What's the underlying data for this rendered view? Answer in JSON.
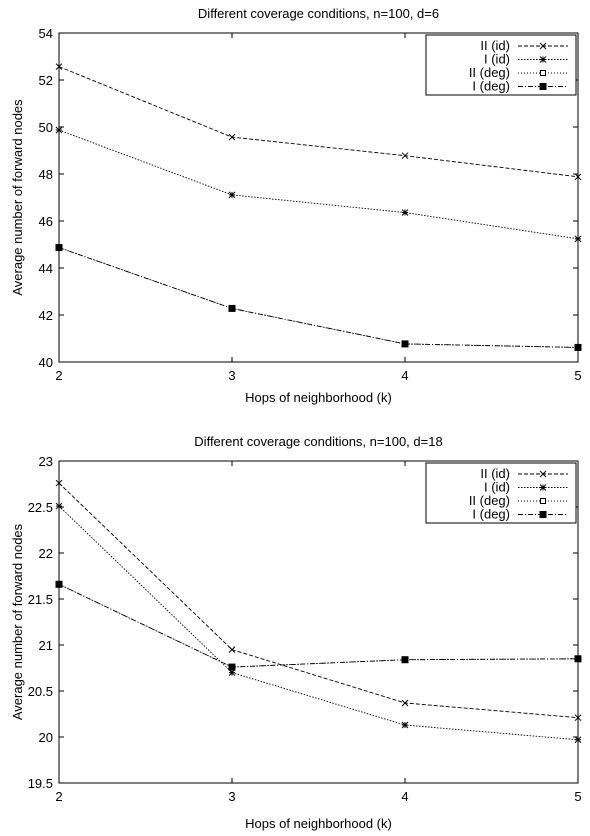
{
  "chart_data": [
    {
      "type": "line",
      "title": "Different coverage conditions, n=100, d=6",
      "xlabel": "Hops of neighborhood (k)",
      "ylabel": "Average number of forward nodes",
      "x": [
        2,
        3,
        4,
        5
      ],
      "xlim": [
        2,
        5
      ],
      "ylim": [
        40,
        54
      ],
      "xticks": [
        "2",
        "3",
        "4",
        "5"
      ],
      "yticks": [
        "40",
        "42",
        "44",
        "46",
        "48",
        "50",
        "52",
        "54"
      ],
      "grid": false,
      "legend_position": "top-right",
      "series": [
        {
          "name": "II (id)",
          "values": [
            52.57,
            49.57,
            48.78,
            47.88
          ],
          "marker": "x",
          "dash": "dashed"
        },
        {
          "name": "I (id)",
          "values": [
            49.87,
            47.11,
            46.36,
            45.24
          ],
          "marker": "star",
          "dash": "dotted"
        },
        {
          "name": "II (deg)",
          "values": [
            44.87,
            42.28,
            40.77,
            40.62
          ],
          "marker": "square-open",
          "dash": "fine-dotted"
        },
        {
          "name": "I (deg)",
          "values": [
            44.87,
            42.28,
            40.77,
            40.62
          ],
          "marker": "square-filled",
          "dash": "dash-dot"
        }
      ]
    },
    {
      "type": "line",
      "title": "Different coverage conditions, n=100, d=18",
      "xlabel": "Hops of neighborhood (k)",
      "ylabel": "Average number of forward nodes",
      "x": [
        2,
        3,
        4,
        5
      ],
      "xlim": [
        2,
        5
      ],
      "ylim": [
        19.5,
        23
      ],
      "xticks": [
        "2",
        "3",
        "4",
        "5"
      ],
      "yticks": [
        "19.5",
        "20",
        "20.5",
        "21",
        "21.5",
        "22",
        "22.5",
        "23"
      ],
      "grid": false,
      "legend_position": "top-right",
      "series": [
        {
          "name": "II (id)",
          "values": [
            22.76,
            20.95,
            20.37,
            20.21
          ],
          "marker": "x",
          "dash": "dashed"
        },
        {
          "name": "I (id)",
          "values": [
            22.51,
            20.7,
            20.13,
            19.97
          ],
          "marker": "star",
          "dash": "dotted"
        },
        {
          "name": "II (deg)",
          "values": [
            21.66,
            20.76,
            20.84,
            20.85
          ],
          "marker": "square-open",
          "dash": "fine-dotted"
        },
        {
          "name": "I (deg)",
          "values": [
            21.66,
            20.76,
            20.84,
            20.85
          ],
          "marker": "square-filled",
          "dash": "dash-dot"
        }
      ]
    }
  ]
}
